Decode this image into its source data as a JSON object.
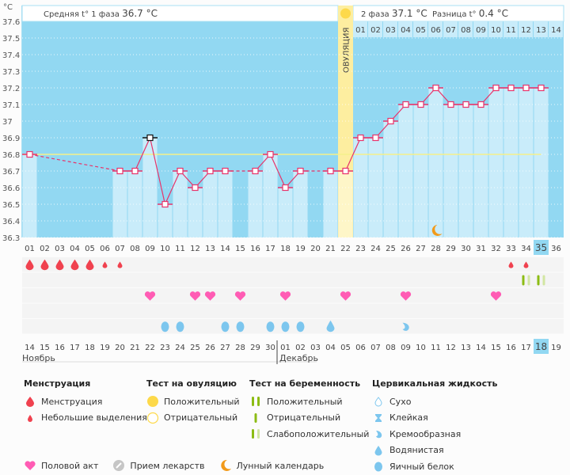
{
  "header": {
    "unit": "°C",
    "phase1_label": "Средняя t° 1 фаза",
    "phase1_value": "36.7 °C",
    "phase2_label": "2 фаза",
    "phase2_value": "37.1 °C",
    "diff_label": "Разница t°",
    "diff_value": "0.4 °C",
    "ovulation_label": "ОВУЛЯЦИЯ"
  },
  "colors": {
    "chart_bg": "#92d8f2",
    "bar_fill": "#c9ecfa",
    "ovulation_fill": "#fdeea0",
    "line": "#e8336a",
    "coverline": "#f5f08a",
    "weekend_red": "#e8336a",
    "highlight": "#92d8f2"
  },
  "chart_data": {
    "type": "line",
    "title": "",
    "ylabel": "°C",
    "ylim": [
      36.3,
      37.6
    ],
    "yticks": [
      "37.6",
      "37.5",
      "37.4",
      "37.3",
      "37.2",
      "37.1",
      "37",
      "36.9",
      "36.8",
      "36.7",
      "36.6",
      "36.5",
      "36.4",
      "36.3"
    ],
    "cycle_days": [
      "01",
      "02",
      "03",
      "04",
      "05",
      "06",
      "07",
      "08",
      "09",
      "10",
      "11",
      "12",
      "13",
      "14",
      "15",
      "16",
      "17",
      "18",
      "19",
      "20",
      "21",
      "22",
      "23",
      "24",
      "25",
      "26",
      "27",
      "28",
      "29",
      "30",
      "31",
      "32",
      "33",
      "34",
      "35",
      "36"
    ],
    "temperatures": [
      36.8,
      null,
      null,
      null,
      null,
      null,
      36.7,
      36.7,
      36.9,
      36.5,
      36.7,
      36.6,
      36.7,
      36.7,
      null,
      36.7,
      36.8,
      36.6,
      36.7,
      null,
      36.7,
      36.7,
      36.9,
      36.9,
      37.0,
      37.1,
      37.1,
      37.2,
      37.1,
      37.1,
      37.1,
      37.2,
      37.2,
      37.2,
      37.2,
      null
    ],
    "excluded_day": "09",
    "coverline": 36.8,
    "ovulation_day": "22",
    "phase2_days": [
      "01",
      "02",
      "03",
      "04",
      "05",
      "06",
      "07",
      "08",
      "09",
      "10",
      "11",
      "12",
      "13",
      "14"
    ],
    "moon_day": "28",
    "current_cycle_day": "35",
    "calendar_dates": [
      "14",
      "15",
      "16",
      "17",
      "18",
      "19",
      "20",
      "21",
      "22",
      "23",
      "24",
      "25",
      "26",
      "27",
      "28",
      "29",
      "30",
      "01",
      "02",
      "03",
      "04",
      "05",
      "06",
      "07",
      "08",
      "09",
      "10",
      "11",
      "12",
      "13",
      "14",
      "15",
      "16",
      "17",
      "18",
      "19"
    ],
    "weekend_dates_idx": [
      0,
      1,
      7,
      8,
      14,
      15,
      21,
      22,
      28,
      29,
      35
    ],
    "today_date": "18",
    "months": [
      {
        "label": "Ноябрь",
        "start_idx": 0
      },
      {
        "label": "Декабрь",
        "start_idx": 17
      }
    ],
    "menstruation": {
      "heavy": [
        "01",
        "02",
        "03",
        "04",
        "05"
      ],
      "light": [
        "06",
        "07",
        "33",
        "34"
      ]
    },
    "pregnancy_tests": [
      {
        "day": "34",
        "result": "weak-positive"
      },
      {
        "day": "35",
        "result": "weak-positive"
      }
    ],
    "intercourse_days": [
      "09",
      "12",
      "13",
      "15",
      "18",
      "22",
      "26",
      "32"
    ],
    "cervical_fluid": [
      {
        "day": "10",
        "type": "egg-white"
      },
      {
        "day": "11",
        "type": "egg-white"
      },
      {
        "day": "14",
        "type": "egg-white"
      },
      {
        "day": "15",
        "type": "egg-white"
      },
      {
        "day": "17",
        "type": "egg-white"
      },
      {
        "day": "18",
        "type": "egg-white"
      },
      {
        "day": "19",
        "type": "egg-white"
      },
      {
        "day": "21",
        "type": "watery"
      },
      {
        "day": "26",
        "type": "creamy"
      }
    ]
  },
  "legend": {
    "menstruation": {
      "title": "Менструация",
      "items": [
        "Менструация",
        "Небольшие выделения"
      ]
    },
    "ovulation_test": {
      "title": "Тест на овуляцию",
      "items": [
        "Положительный",
        "Отрицательный"
      ]
    },
    "pregnancy_test": {
      "title": "Тест на беременность",
      "items": [
        "Положительный",
        "Отрицательный",
        "Слабоположительный"
      ]
    },
    "cervical": {
      "title": "Цервикальная жидкость",
      "items": [
        "Сухо",
        "Клейкая",
        "Кремообразная",
        "Водянистая",
        "Яичный белок"
      ]
    },
    "other": [
      "Половой акт",
      "Прием лекарств",
      "Лунный календарь"
    ]
  }
}
